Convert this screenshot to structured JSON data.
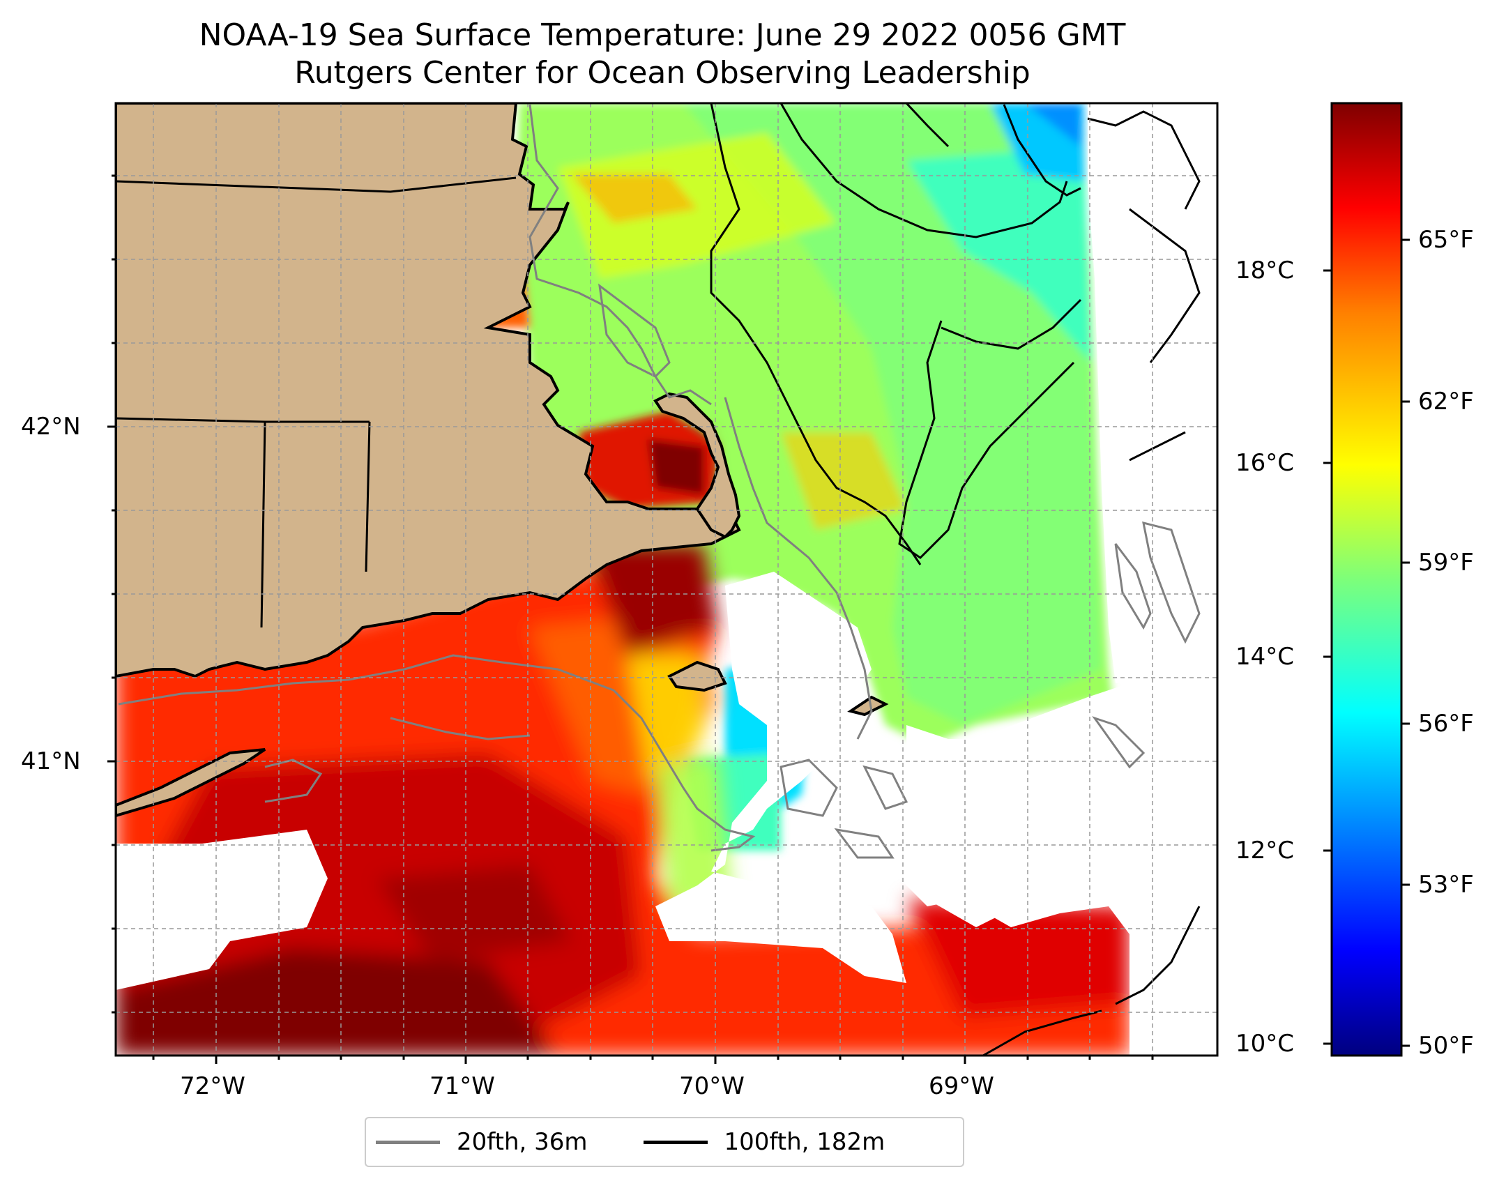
{
  "title": {
    "line1": "NOAA-19 Sea Surface Temperature: June 29 2022 0056 GMT",
    "line2": "Rutgers Center for Ocean Observing Leadership"
  },
  "colors": {
    "land": "#d2b48c",
    "nodata": "#ffffff",
    "contour_20fth": "#808080",
    "contour_100fth": "#000000"
  },
  "axes": {
    "lon_labels": [
      "72°W",
      "71°W",
      "70°W",
      "69°W"
    ],
    "lat_labels": [
      "42°N",
      "41°N"
    ],
    "grid": true
  },
  "colorbar": {
    "colormap": "jet",
    "celsius_labels": [
      "18°C",
      "16°C",
      "14°C",
      "12°C",
      "10°C"
    ],
    "fahrenheit_labels": [
      "65°F",
      "62°F",
      "59°F",
      "56°F",
      "53°F",
      "50°F"
    ]
  },
  "legend": {
    "items": [
      {
        "label": "20fth, 36m",
        "color": "#808080"
      },
      {
        "label": "100fth, 182m",
        "color": "#000000"
      }
    ]
  }
}
